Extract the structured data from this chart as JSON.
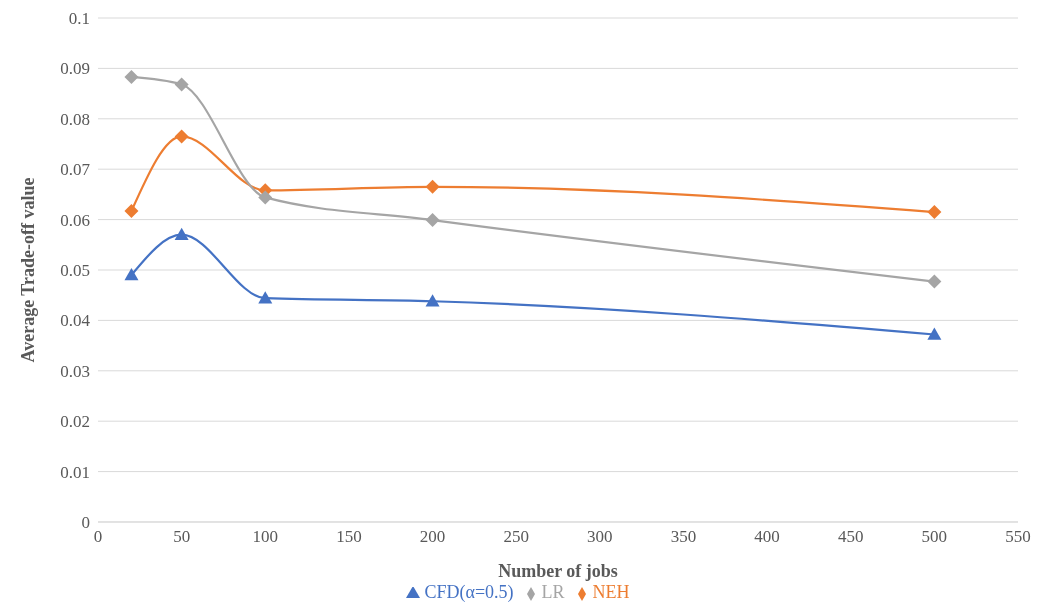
{
  "chart_data": {
    "type": "line",
    "xlabel": "Number of jobs",
    "ylabel": "Average Trade-off value",
    "x": [
      20,
      50,
      100,
      200,
      500
    ],
    "series": [
      {
        "name": "CFD(α=0.5)",
        "color": "#4472c4",
        "marker": "triangle",
        "values": [
          0.049,
          0.057,
          0.0444,
          0.0438,
          0.0372
        ]
      },
      {
        "name": "NEH",
        "color": "#ed7d31",
        "marker": "diamond",
        "values": [
          0.0617,
          0.0765,
          0.0658,
          0.0665,
          0.0615
        ]
      },
      {
        "name": "LR",
        "color": "#a5a5a5",
        "marker": "diamond",
        "values": [
          0.0883,
          0.0868,
          0.0644,
          0.0599,
          0.0477
        ]
      }
    ],
    "xlim": [
      0,
      550
    ],
    "xticks": [
      0,
      50,
      100,
      150,
      200,
      250,
      300,
      350,
      400,
      450,
      500,
      550
    ],
    "ylim": [
      0,
      0.1
    ],
    "yticks": [
      0,
      0.01,
      0.02,
      0.03,
      0.04,
      0.05,
      0.06,
      0.07,
      0.08,
      0.09,
      0.1
    ],
    "grid": "y",
    "legend": "bottom",
    "line_style": "solid"
  }
}
